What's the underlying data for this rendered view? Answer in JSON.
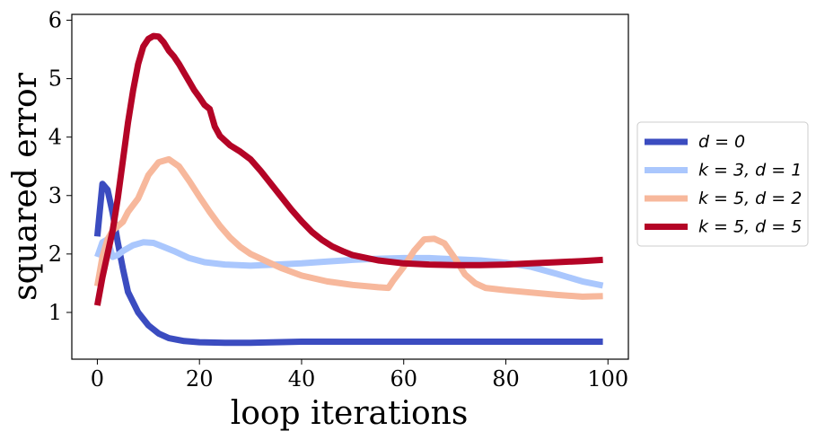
{
  "chart_data": {
    "type": "line",
    "xlabel": "loop iterations",
    "ylabel": "squared error",
    "xlim": [
      -5,
      104
    ],
    "ylim": [
      0.2,
      6.1
    ],
    "xticks": [
      0,
      20,
      40,
      60,
      80,
      100
    ],
    "yticks": [
      1,
      2,
      3,
      4,
      5,
      6
    ],
    "grid": false,
    "legend_position": "right",
    "series": [
      {
        "name": "d = 0",
        "color": "#3b4cc0",
        "points": [
          [
            0,
            2.3
          ],
          [
            1,
            3.2
          ],
          [
            2,
            3.1
          ],
          [
            3,
            2.7
          ],
          [
            4,
            2.2
          ],
          [
            5,
            1.75
          ],
          [
            6,
            1.35
          ],
          [
            8,
            1.0
          ],
          [
            10,
            0.78
          ],
          [
            12,
            0.64
          ],
          [
            14,
            0.56
          ],
          [
            17,
            0.51
          ],
          [
            20,
            0.49
          ],
          [
            25,
            0.48
          ],
          [
            30,
            0.48
          ],
          [
            40,
            0.5
          ],
          [
            50,
            0.5
          ],
          [
            60,
            0.5
          ],
          [
            70,
            0.5
          ],
          [
            80,
            0.5
          ],
          [
            90,
            0.5
          ],
          [
            99,
            0.5
          ]
        ]
      },
      {
        "name": "k = 3, d = 1",
        "color": "#aac7fd",
        "points": [
          [
            0,
            1.95
          ],
          [
            1,
            2.2
          ],
          [
            2,
            2.25
          ],
          [
            3,
            1.95
          ],
          [
            4,
            1.98
          ],
          [
            5,
            2.05
          ],
          [
            7,
            2.15
          ],
          [
            9,
            2.2
          ],
          [
            11,
            2.19
          ],
          [
            13,
            2.12
          ],
          [
            15,
            2.05
          ],
          [
            18,
            1.93
          ],
          [
            21,
            1.86
          ],
          [
            25,
            1.82
          ],
          [
            30,
            1.8
          ],
          [
            35,
            1.82
          ],
          [
            40,
            1.84
          ],
          [
            45,
            1.87
          ],
          [
            50,
            1.9
          ],
          [
            55,
            1.92
          ],
          [
            60,
            1.93
          ],
          [
            65,
            1.93
          ],
          [
            70,
            1.91
          ],
          [
            75,
            1.89
          ],
          [
            80,
            1.85
          ],
          [
            85,
            1.78
          ],
          [
            90,
            1.66
          ],
          [
            95,
            1.53
          ],
          [
            99,
            1.46
          ]
        ]
      },
      {
        "name": "k = 5, d = 2",
        "color": "#f7b89c",
        "points": [
          [
            0,
            1.45
          ],
          [
            1,
            1.95
          ],
          [
            2,
            2.25
          ],
          [
            3,
            2.4
          ],
          [
            5,
            2.55
          ],
          [
            6,
            2.72
          ],
          [
            8,
            2.95
          ],
          [
            10,
            3.35
          ],
          [
            12,
            3.57
          ],
          [
            14,
            3.62
          ],
          [
            16,
            3.5
          ],
          [
            18,
            3.25
          ],
          [
            20,
            2.98
          ],
          [
            22,
            2.72
          ],
          [
            24,
            2.48
          ],
          [
            26,
            2.28
          ],
          [
            28,
            2.12
          ],
          [
            30,
            2.0
          ],
          [
            32,
            1.92
          ],
          [
            34,
            1.84
          ],
          [
            36,
            1.76
          ],
          [
            40,
            1.63
          ],
          [
            45,
            1.53
          ],
          [
            50,
            1.47
          ],
          [
            55,
            1.43
          ],
          [
            57,
            1.42
          ],
          [
            58,
            1.55
          ],
          [
            60,
            1.78
          ],
          [
            62,
            2.05
          ],
          [
            64,
            2.25
          ],
          [
            66,
            2.26
          ],
          [
            68,
            2.18
          ],
          [
            70,
            1.93
          ],
          [
            72,
            1.65
          ],
          [
            74,
            1.5
          ],
          [
            76,
            1.42
          ],
          [
            80,
            1.38
          ],
          [
            85,
            1.34
          ],
          [
            90,
            1.3
          ],
          [
            95,
            1.27
          ],
          [
            99,
            1.28
          ]
        ]
      },
      {
        "name": "k = 5, d = 5",
        "color": "#b40426",
        "points": [
          [
            0,
            1.12
          ],
          [
            1,
            1.6
          ],
          [
            2,
            2.0
          ],
          [
            3,
            2.4
          ],
          [
            4,
            2.95
          ],
          [
            5,
            3.6
          ],
          [
            6,
            4.25
          ],
          [
            7,
            4.8
          ],
          [
            8,
            5.25
          ],
          [
            9,
            5.55
          ],
          [
            10,
            5.68
          ],
          [
            11,
            5.73
          ],
          [
            12,
            5.72
          ],
          [
            13,
            5.62
          ],
          [
            14,
            5.48
          ],
          [
            15,
            5.38
          ],
          [
            16,
            5.25
          ],
          [
            17,
            5.1
          ],
          [
            18,
            4.95
          ],
          [
            19,
            4.8
          ],
          [
            20,
            4.68
          ],
          [
            21,
            4.55
          ],
          [
            22,
            4.48
          ],
          [
            23,
            4.18
          ],
          [
            24,
            4.02
          ],
          [
            26,
            3.86
          ],
          [
            28,
            3.75
          ],
          [
            30,
            3.62
          ],
          [
            32,
            3.42
          ],
          [
            34,
            3.2
          ],
          [
            36,
            2.98
          ],
          [
            38,
            2.76
          ],
          [
            40,
            2.56
          ],
          [
            42,
            2.38
          ],
          [
            44,
            2.24
          ],
          [
            46,
            2.13
          ],
          [
            48,
            2.05
          ],
          [
            50,
            1.98
          ],
          [
            55,
            1.89
          ],
          [
            60,
            1.84
          ],
          [
            65,
            1.82
          ],
          [
            70,
            1.81
          ],
          [
            75,
            1.81
          ],
          [
            80,
            1.82
          ],
          [
            85,
            1.84
          ],
          [
            90,
            1.86
          ],
          [
            95,
            1.88
          ],
          [
            99,
            1.9
          ]
        ]
      }
    ]
  }
}
